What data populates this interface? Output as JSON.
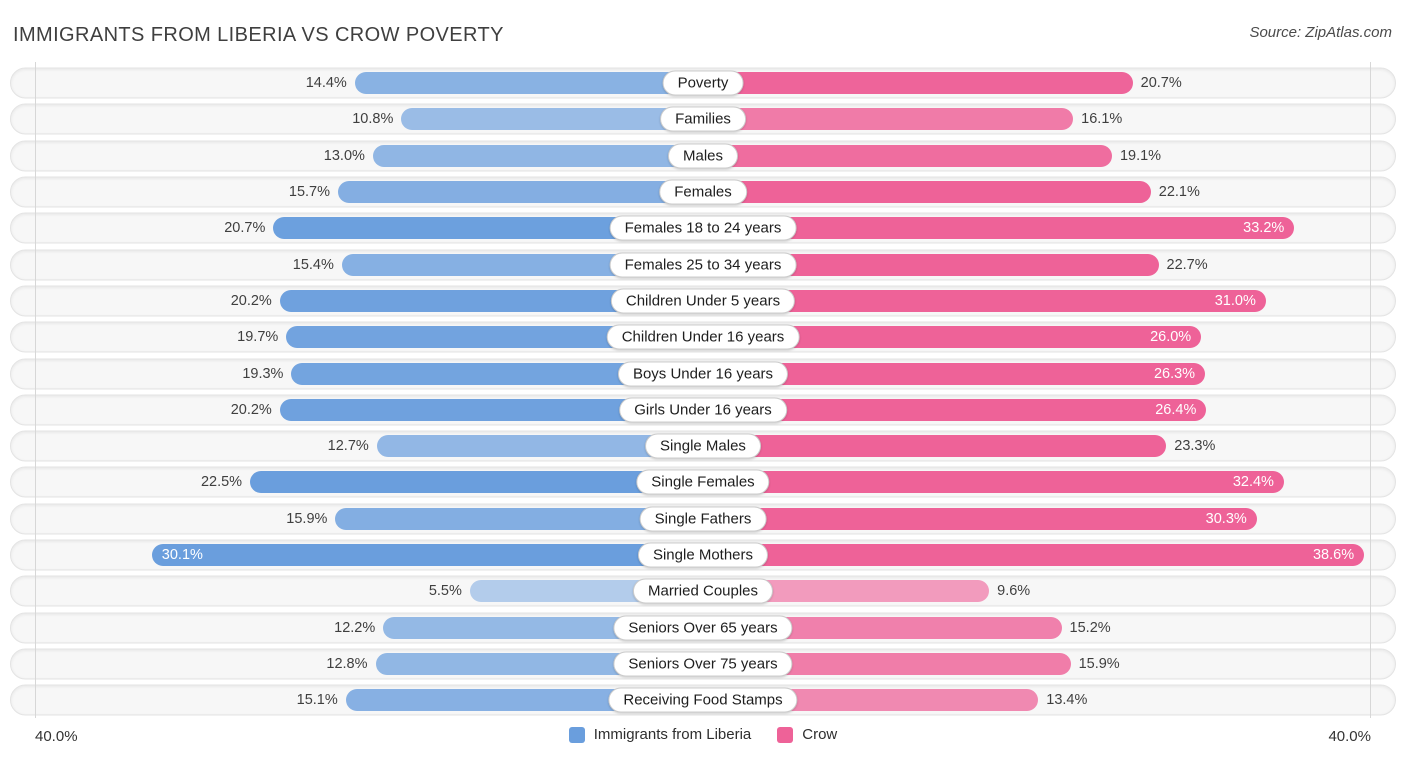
{
  "title": "IMMIGRANTS FROM LIBERIA VS CROW POVERTY",
  "source": "Source: ZipAtlas.com",
  "axis": {
    "left_label": "40.0%",
    "right_label": "40.0%",
    "max_percent": 40.0
  },
  "legend": {
    "left": {
      "label": "Immigrants from Liberia",
      "color": "#6a9edd"
    },
    "right": {
      "label": "Crow",
      "color": "#ee6298"
    }
  },
  "chart_data": {
    "type": "bar",
    "orientation": "diverging-horizontal",
    "title": "IMMIGRANTS FROM LIBERIA VS CROW POVERTY",
    "value_format": "percent",
    "axis_range_percent": [
      0,
      40
    ],
    "grid": false,
    "legend_position": "bottom-center",
    "categories": [
      "Poverty",
      "Families",
      "Males",
      "Females",
      "Females 18 to 24 years",
      "Females 25 to 34 years",
      "Children Under 5 years",
      "Children Under 16 years",
      "Boys Under 16 years",
      "Girls Under 16 years",
      "Single Males",
      "Single Females",
      "Single Fathers",
      "Single Mothers",
      "Married Couples",
      "Seniors Over 65 years",
      "Seniors Over 75 years",
      "Receiving Food Stamps"
    ],
    "series": [
      {
        "name": "Immigrants from Liberia",
        "side": "left",
        "color": "#6a9edd",
        "values": [
          14.4,
          10.8,
          13.0,
          15.7,
          20.7,
          15.4,
          20.2,
          19.7,
          19.3,
          20.2,
          12.7,
          22.5,
          15.9,
          30.1,
          5.5,
          12.2,
          12.8,
          15.1
        ],
        "labels": [
          "14.4%",
          "10.8%",
          "13.0%",
          "15.7%",
          "20.7%",
          "15.4%",
          "20.2%",
          "19.7%",
          "19.3%",
          "20.2%",
          "12.7%",
          "22.5%",
          "15.9%",
          "30.1%",
          "5.5%",
          "12.2%",
          "12.8%",
          "15.1%"
        ]
      },
      {
        "name": "Crow",
        "side": "right",
        "color": "#ee6298",
        "values": [
          20.7,
          16.1,
          19.1,
          22.1,
          33.2,
          22.7,
          31.0,
          26.0,
          26.3,
          26.4,
          23.3,
          32.4,
          30.3,
          38.6,
          9.6,
          15.2,
          15.9,
          13.4
        ],
        "labels": [
          "20.7%",
          "16.1%",
          "19.1%",
          "22.1%",
          "33.2%",
          "22.7%",
          "31.0%",
          "26.0%",
          "26.3%",
          "26.4%",
          "23.3%",
          "32.4%",
          "30.3%",
          "38.6%",
          "9.6%",
          "15.2%",
          "15.9%",
          "13.4%"
        ]
      }
    ]
  }
}
